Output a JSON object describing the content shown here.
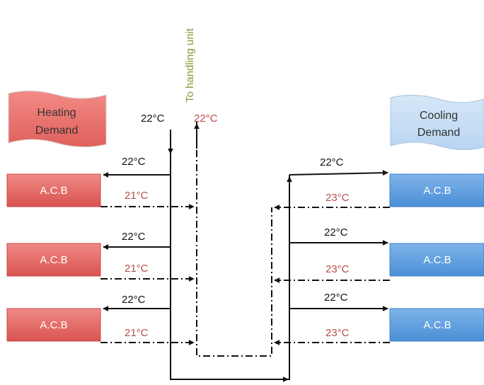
{
  "colors": {
    "supply_text": "#111111",
    "return_text": "#b5504a",
    "handling_text": "#8a9a38",
    "heating_fill": "#e35f5f",
    "cooling_fill": "#5f9ee0",
    "line": "#111111"
  },
  "handling_unit_label": "To handling unit",
  "main_supply_temp": "22°C",
  "main_return_temp": "22°C",
  "heating": {
    "flag": [
      "Heating",
      "Demand"
    ],
    "units": [
      {
        "label": "A.C.B",
        "supply": "22°C",
        "return": "21°C"
      },
      {
        "label": "A.C.B",
        "supply": "22°C",
        "return": "21°C"
      },
      {
        "label": "A.C.B",
        "supply": "22°C",
        "return": "21°C"
      }
    ]
  },
  "cooling": {
    "flag": [
      "Cooling",
      "Demand"
    ],
    "units": [
      {
        "label": "A.C.B",
        "supply": "22°C",
        "return": "23°C"
      },
      {
        "label": "A.C.B",
        "supply": "22°C",
        "return": "23°C"
      },
      {
        "label": "A.C.B",
        "supply": "22°C",
        "return": "23°C"
      }
    ]
  }
}
